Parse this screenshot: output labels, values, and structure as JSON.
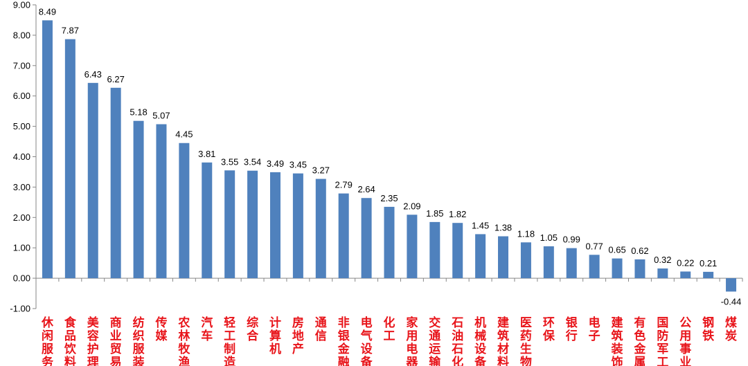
{
  "chart_data": {
    "type": "bar",
    "title": "",
    "xlabel": "",
    "ylabel": "",
    "ylim": [
      -1,
      9
    ],
    "yticks": [
      "-1.00",
      "0.00",
      "1.00",
      "2.00",
      "3.00",
      "4.00",
      "5.00",
      "6.00",
      "7.00",
      "8.00",
      "9.00"
    ],
    "grid": false,
    "bar_color": "#4f81bd",
    "category_label_color": "#e8141a",
    "categories": [
      "休闲服务",
      "食品饮料",
      "美容护理",
      "商业贸易",
      "纺织服装",
      "传媒",
      "农林牧渔",
      "汽车",
      "轻工制造",
      "综合",
      "计算机",
      "房地产",
      "通信",
      "非银金融",
      "电气设备",
      "化工",
      "家用电器",
      "交通运输",
      "石油石化",
      "机械设备",
      "建筑材料",
      "医药生物",
      "环保",
      "银行",
      "电子",
      "建筑装饰",
      "有色金属",
      "国防军工",
      "公用事业",
      "钢铁",
      "煤炭"
    ],
    "values": [
      8.49,
      7.87,
      6.43,
      6.27,
      5.18,
      5.07,
      4.45,
      3.81,
      3.55,
      3.54,
      3.49,
      3.45,
      3.27,
      2.79,
      2.64,
      2.35,
      2.09,
      1.85,
      1.82,
      1.45,
      1.38,
      1.18,
      1.05,
      0.99,
      0.77,
      0.65,
      0.62,
      0.32,
      0.22,
      0.21,
      -0.44
    ],
    "data_labels": [
      "8.49",
      "7.87",
      "6.43",
      "6.27",
      "5.18",
      "5.07",
      "4.45",
      "3.81",
      "3.55",
      "3.54",
      "3.49",
      "3.45",
      "3.27",
      "2.79",
      "2.64",
      "2.35",
      "2.09",
      "1.85",
      "1.82",
      "1.45",
      "1.38",
      "1.18",
      "1.05",
      "0.99",
      "0.77",
      "0.65",
      "0.62",
      "0.32",
      "0.22",
      "0.21",
      "-0.44"
    ]
  }
}
